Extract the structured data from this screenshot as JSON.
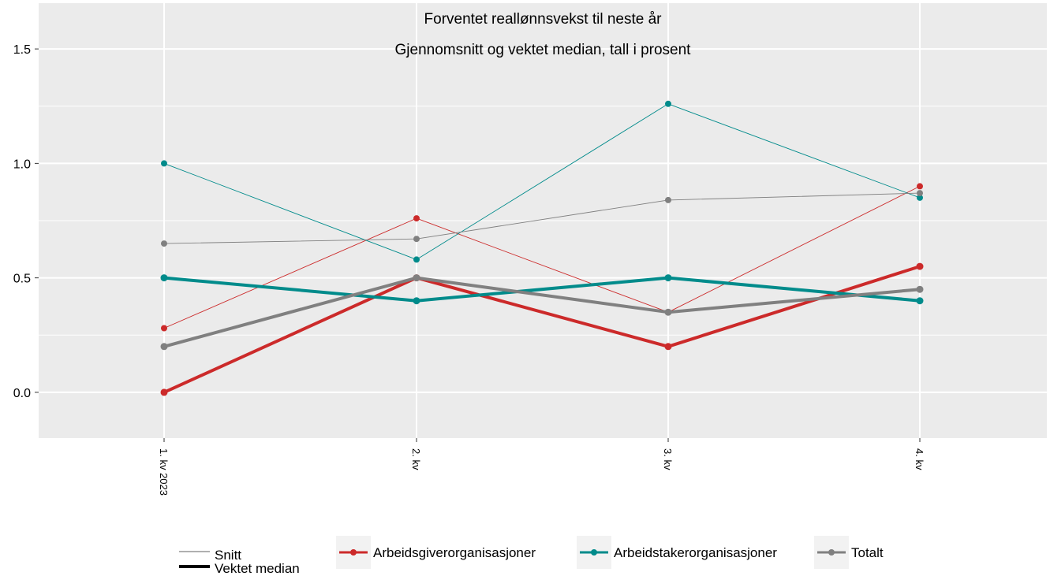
{
  "chart_data": {
    "type": "line",
    "title": "Forventet reallønnsvekst til neste år",
    "subtitle": "Gjennomsnitt og vektet median, tall i prosent",
    "categories": [
      "1. kv 2023",
      "2. kv",
      "3. kv",
      "4. kv"
    ],
    "ylim": [
      -0.2,
      1.7
    ],
    "yticks": [
      0.0,
      0.5,
      1.0,
      1.5
    ],
    "ytick_labels": [
      "0.0",
      "0.5",
      "1.0",
      "1.5"
    ],
    "xlabel": "",
    "ylabel": "",
    "grid": true,
    "legend_position": "bottom",
    "linetype_legend": [
      "Snitt",
      "Vektet median"
    ],
    "series": [
      {
        "name": "Arbeidsgiverorganisasjoner",
        "color": "#cc2a2a",
        "measure": "Snitt",
        "values": [
          0.28,
          0.76,
          0.35,
          0.9
        ]
      },
      {
        "name": "Arbeidstakerorganisasjoner",
        "color": "#008b8b",
        "measure": "Snitt",
        "values": [
          1.0,
          0.58,
          1.26,
          0.85
        ]
      },
      {
        "name": "Totalt",
        "color": "#808080",
        "measure": "Snitt",
        "values": [
          0.65,
          0.67,
          0.84,
          0.87
        ]
      },
      {
        "name": "Arbeidsgiverorganisasjoner",
        "color": "#cc2a2a",
        "measure": "Vektet median",
        "values": [
          0.0,
          0.5,
          0.2,
          0.55
        ]
      },
      {
        "name": "Arbeidstakerorganisasjoner",
        "color": "#008b8b",
        "measure": "Vektet median",
        "values": [
          0.5,
          0.4,
          0.5,
          0.4
        ]
      },
      {
        "name": "Totalt",
        "color": "#808080",
        "measure": "Vektet median",
        "values": [
          0.2,
          0.5,
          0.35,
          0.45
        ]
      }
    ]
  },
  "colors": {
    "panel_background": "#ebebeb",
    "grid": "#ffffff"
  }
}
